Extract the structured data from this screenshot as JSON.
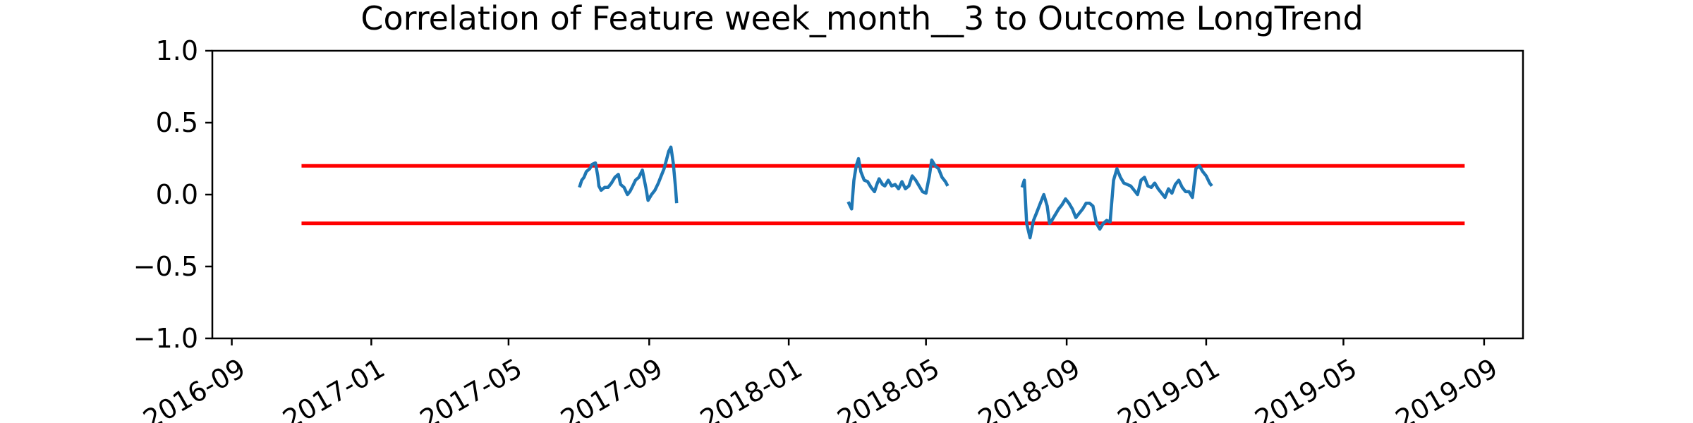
{
  "chart_data": {
    "type": "line",
    "title": "Correlation of Feature week_month__3 to Outcome LongTrend",
    "xlabel": "",
    "ylabel": "",
    "xlim": [
      "2016-08-15",
      "2019-10-05"
    ],
    "ylim": [
      -1.0,
      1.0
    ],
    "xticks": [
      "2016-09",
      "2017-01",
      "2017-05",
      "2017-09",
      "2018-01",
      "2018-05",
      "2018-09",
      "2019-01",
      "2019-05",
      "2019-09"
    ],
    "xtick_dates": [
      "2016-09-01",
      "2017-01-01",
      "2017-05-01",
      "2017-09-01",
      "2018-01-01",
      "2018-05-01",
      "2018-09-01",
      "2019-01-01",
      "2019-05-01",
      "2019-09-01"
    ],
    "yticks": [
      "−1.0",
      "−0.5",
      "0.0",
      "0.5",
      "1.0"
    ],
    "ytick_values": [
      -1.0,
      -0.5,
      0.0,
      0.5,
      1.0
    ],
    "grid": false,
    "colors": {
      "series": "#1f77b4",
      "thresholds": "#ff0000"
    },
    "thresholds": [
      {
        "y": 0.2,
        "x": [
          "2016-11-01",
          "2019-08-15"
        ]
      },
      {
        "y": -0.2,
        "x": [
          "2016-11-01",
          "2019-08-15"
        ]
      }
    ],
    "series": [
      {
        "segments": [
          [
            [
              "2017-07-02",
              0.05
            ],
            [
              "2017-07-04",
              0.1
            ],
            [
              "2017-07-06",
              0.12
            ],
            [
              "2017-07-08",
              0.16
            ],
            [
              "2017-07-11",
              0.18
            ],
            [
              "2017-07-13",
              0.21
            ],
            [
              "2017-07-16",
              0.22
            ],
            [
              "2017-07-18",
              0.13
            ],
            [
              "2017-07-19",
              0.06
            ],
            [
              "2017-07-21",
              0.03
            ],
            [
              "2017-07-24",
              0.05
            ],
            [
              "2017-07-27",
              0.05
            ],
            [
              "2017-07-30",
              0.08
            ],
            [
              "2017-08-02",
              0.12
            ],
            [
              "2017-08-05",
              0.14
            ],
            [
              "2017-08-07",
              0.07
            ],
            [
              "2017-08-10",
              0.05
            ],
            [
              "2017-08-13",
              0.0
            ],
            [
              "2017-08-15",
              0.02
            ],
            [
              "2017-08-17",
              0.05
            ],
            [
              "2017-08-20",
              0.1
            ],
            [
              "2017-08-23",
              0.12
            ],
            [
              "2017-08-26",
              0.17
            ],
            [
              "2017-08-29",
              0.05
            ],
            [
              "2017-08-31",
              -0.04
            ],
            [
              "2017-09-03",
              0.0
            ],
            [
              "2017-09-06",
              0.03
            ],
            [
              "2017-09-09",
              0.08
            ],
            [
              "2017-09-11",
              0.12
            ],
            [
              "2017-09-14",
              0.18
            ],
            [
              "2017-09-16",
              0.24
            ],
            [
              "2017-09-18",
              0.3
            ],
            [
              "2017-09-20",
              0.33
            ],
            [
              "2017-09-22",
              0.22
            ],
            [
              "2017-09-24",
              0.05
            ],
            [
              "2017-09-25",
              -0.06
            ]
          ],
          [
            [
              "2018-02-22",
              -0.05
            ],
            [
              "2018-02-25",
              -0.1
            ],
            [
              "2018-02-27",
              0.1
            ],
            [
              "2018-03-01",
              0.2
            ],
            [
              "2018-03-03",
              0.25
            ],
            [
              "2018-03-05",
              0.16
            ],
            [
              "2018-03-08",
              0.1
            ],
            [
              "2018-03-11",
              0.09
            ],
            [
              "2018-03-14",
              0.05
            ],
            [
              "2018-03-17",
              0.02
            ],
            [
              "2018-03-19",
              0.07
            ],
            [
              "2018-03-21",
              0.11
            ],
            [
              "2018-03-24",
              0.07
            ],
            [
              "2018-03-26",
              0.06
            ],
            [
              "2018-03-29",
              0.1
            ],
            [
              "2018-04-01",
              0.06
            ],
            [
              "2018-04-04",
              0.07
            ],
            [
              "2018-04-07",
              0.04
            ],
            [
              "2018-04-10",
              0.09
            ],
            [
              "2018-04-13",
              0.04
            ],
            [
              "2018-04-16",
              0.06
            ],
            [
              "2018-04-19",
              0.13
            ],
            [
              "2018-04-22",
              0.1
            ],
            [
              "2018-04-25",
              0.06
            ],
            [
              "2018-04-28",
              0.02
            ],
            [
              "2018-05-01",
              0.01
            ],
            [
              "2018-05-04",
              0.13
            ],
            [
              "2018-05-06",
              0.24
            ],
            [
              "2018-05-09",
              0.2
            ],
            [
              "2018-05-12",
              0.18
            ],
            [
              "2018-05-15",
              0.12
            ],
            [
              "2018-05-18",
              0.09
            ],
            [
              "2018-05-20",
              0.06
            ]
          ],
          [
            [
              "2018-07-24",
              0.05
            ],
            [
              "2018-07-26",
              0.1
            ],
            [
              "2018-07-28",
              -0.2
            ],
            [
              "2018-07-31",
              -0.3
            ],
            [
              "2018-08-03",
              -0.18
            ],
            [
              "2018-08-06",
              -0.12
            ],
            [
              "2018-08-09",
              -0.06
            ],
            [
              "2018-08-12",
              0.0
            ],
            [
              "2018-08-15",
              -0.08
            ],
            [
              "2018-08-17",
              -0.2
            ],
            [
              "2018-08-19",
              -0.18
            ],
            [
              "2018-08-22",
              -0.14
            ],
            [
              "2018-08-25",
              -0.1
            ],
            [
              "2018-08-28",
              -0.07
            ],
            [
              "2018-08-31",
              -0.03
            ],
            [
              "2018-09-03",
              -0.06
            ],
            [
              "2018-09-06",
              -0.1
            ],
            [
              "2018-09-09",
              -0.16
            ],
            [
              "2018-09-12",
              -0.13
            ],
            [
              "2018-09-15",
              -0.1
            ],
            [
              "2018-09-18",
              -0.06
            ],
            [
              "2018-09-21",
              -0.06
            ],
            [
              "2018-09-24",
              -0.08
            ],
            [
              "2018-09-27",
              -0.2
            ],
            [
              "2018-09-30",
              -0.24
            ],
            [
              "2018-10-03",
              -0.2
            ],
            [
              "2018-10-06",
              -0.18
            ],
            [
              "2018-10-09",
              -0.19
            ],
            [
              "2018-10-12",
              0.1
            ],
            [
              "2018-10-15",
              0.18
            ],
            [
              "2018-10-18",
              0.12
            ],
            [
              "2018-10-21",
              0.08
            ],
            [
              "2018-10-24",
              0.07
            ],
            [
              "2018-10-27",
              0.06
            ],
            [
              "2018-10-30",
              0.03
            ],
            [
              "2018-11-02",
              0.0
            ],
            [
              "2018-11-05",
              0.1
            ],
            [
              "2018-11-08",
              0.12
            ],
            [
              "2018-11-11",
              0.06
            ],
            [
              "2018-11-14",
              0.05
            ],
            [
              "2018-11-17",
              0.08
            ],
            [
              "2018-11-20",
              0.04
            ],
            [
              "2018-11-23",
              0.01
            ],
            [
              "2018-11-26",
              -0.02
            ],
            [
              "2018-11-29",
              0.04
            ],
            [
              "2018-12-02",
              0.01
            ],
            [
              "2018-12-05",
              0.07
            ],
            [
              "2018-12-08",
              0.1
            ],
            [
              "2018-12-11",
              0.05
            ],
            [
              "2018-12-14",
              0.02
            ],
            [
              "2018-12-17",
              0.02
            ],
            [
              "2018-12-20",
              -0.02
            ],
            [
              "2018-12-23",
              0.18
            ],
            [
              "2018-12-26",
              0.2
            ],
            [
              "2018-12-29",
              0.16
            ],
            [
              "2019-01-01",
              0.13
            ],
            [
              "2019-01-04",
              0.08
            ],
            [
              "2019-01-06",
              0.06
            ]
          ]
        ]
      }
    ]
  }
}
